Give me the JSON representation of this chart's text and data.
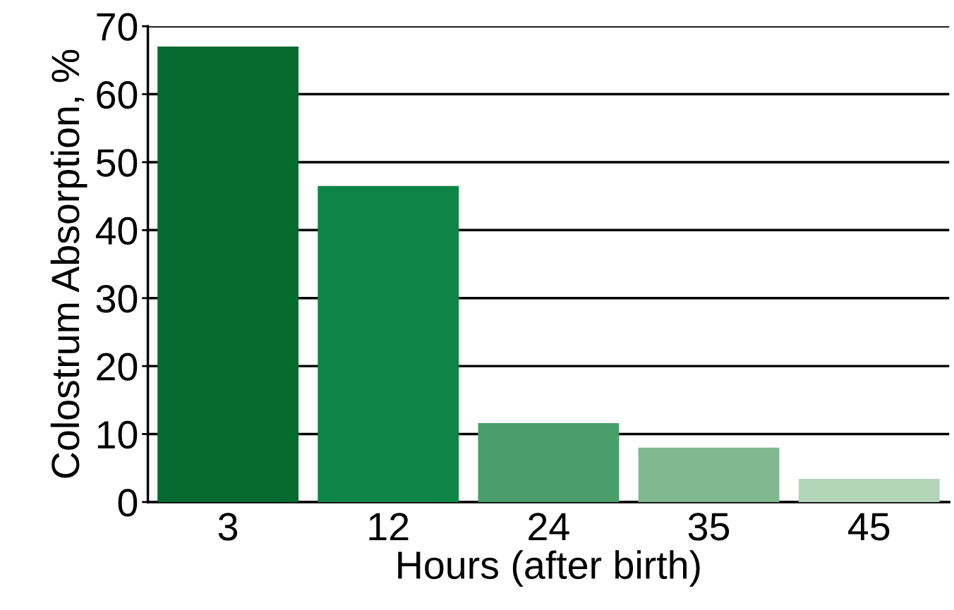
{
  "chart_data": {
    "type": "bar",
    "xlabel": "Hours (after birth)",
    "ylabel": "Colostrum Absorption, %",
    "categories": [
      "3",
      "12",
      "24",
      "35",
      "45"
    ],
    "values": [
      67,
      46.5,
      11.6,
      8,
      3.4
    ],
    "colors": [
      "#056b2e",
      "#0e8446",
      "#4a9e6a",
      "#80b88f",
      "#b3d5b8"
    ],
    "ylim": [
      0,
      70
    ],
    "yticks": [
      0,
      10,
      20,
      30,
      40,
      50,
      60,
      70
    ],
    "grid": "y",
    "legend": false
  }
}
